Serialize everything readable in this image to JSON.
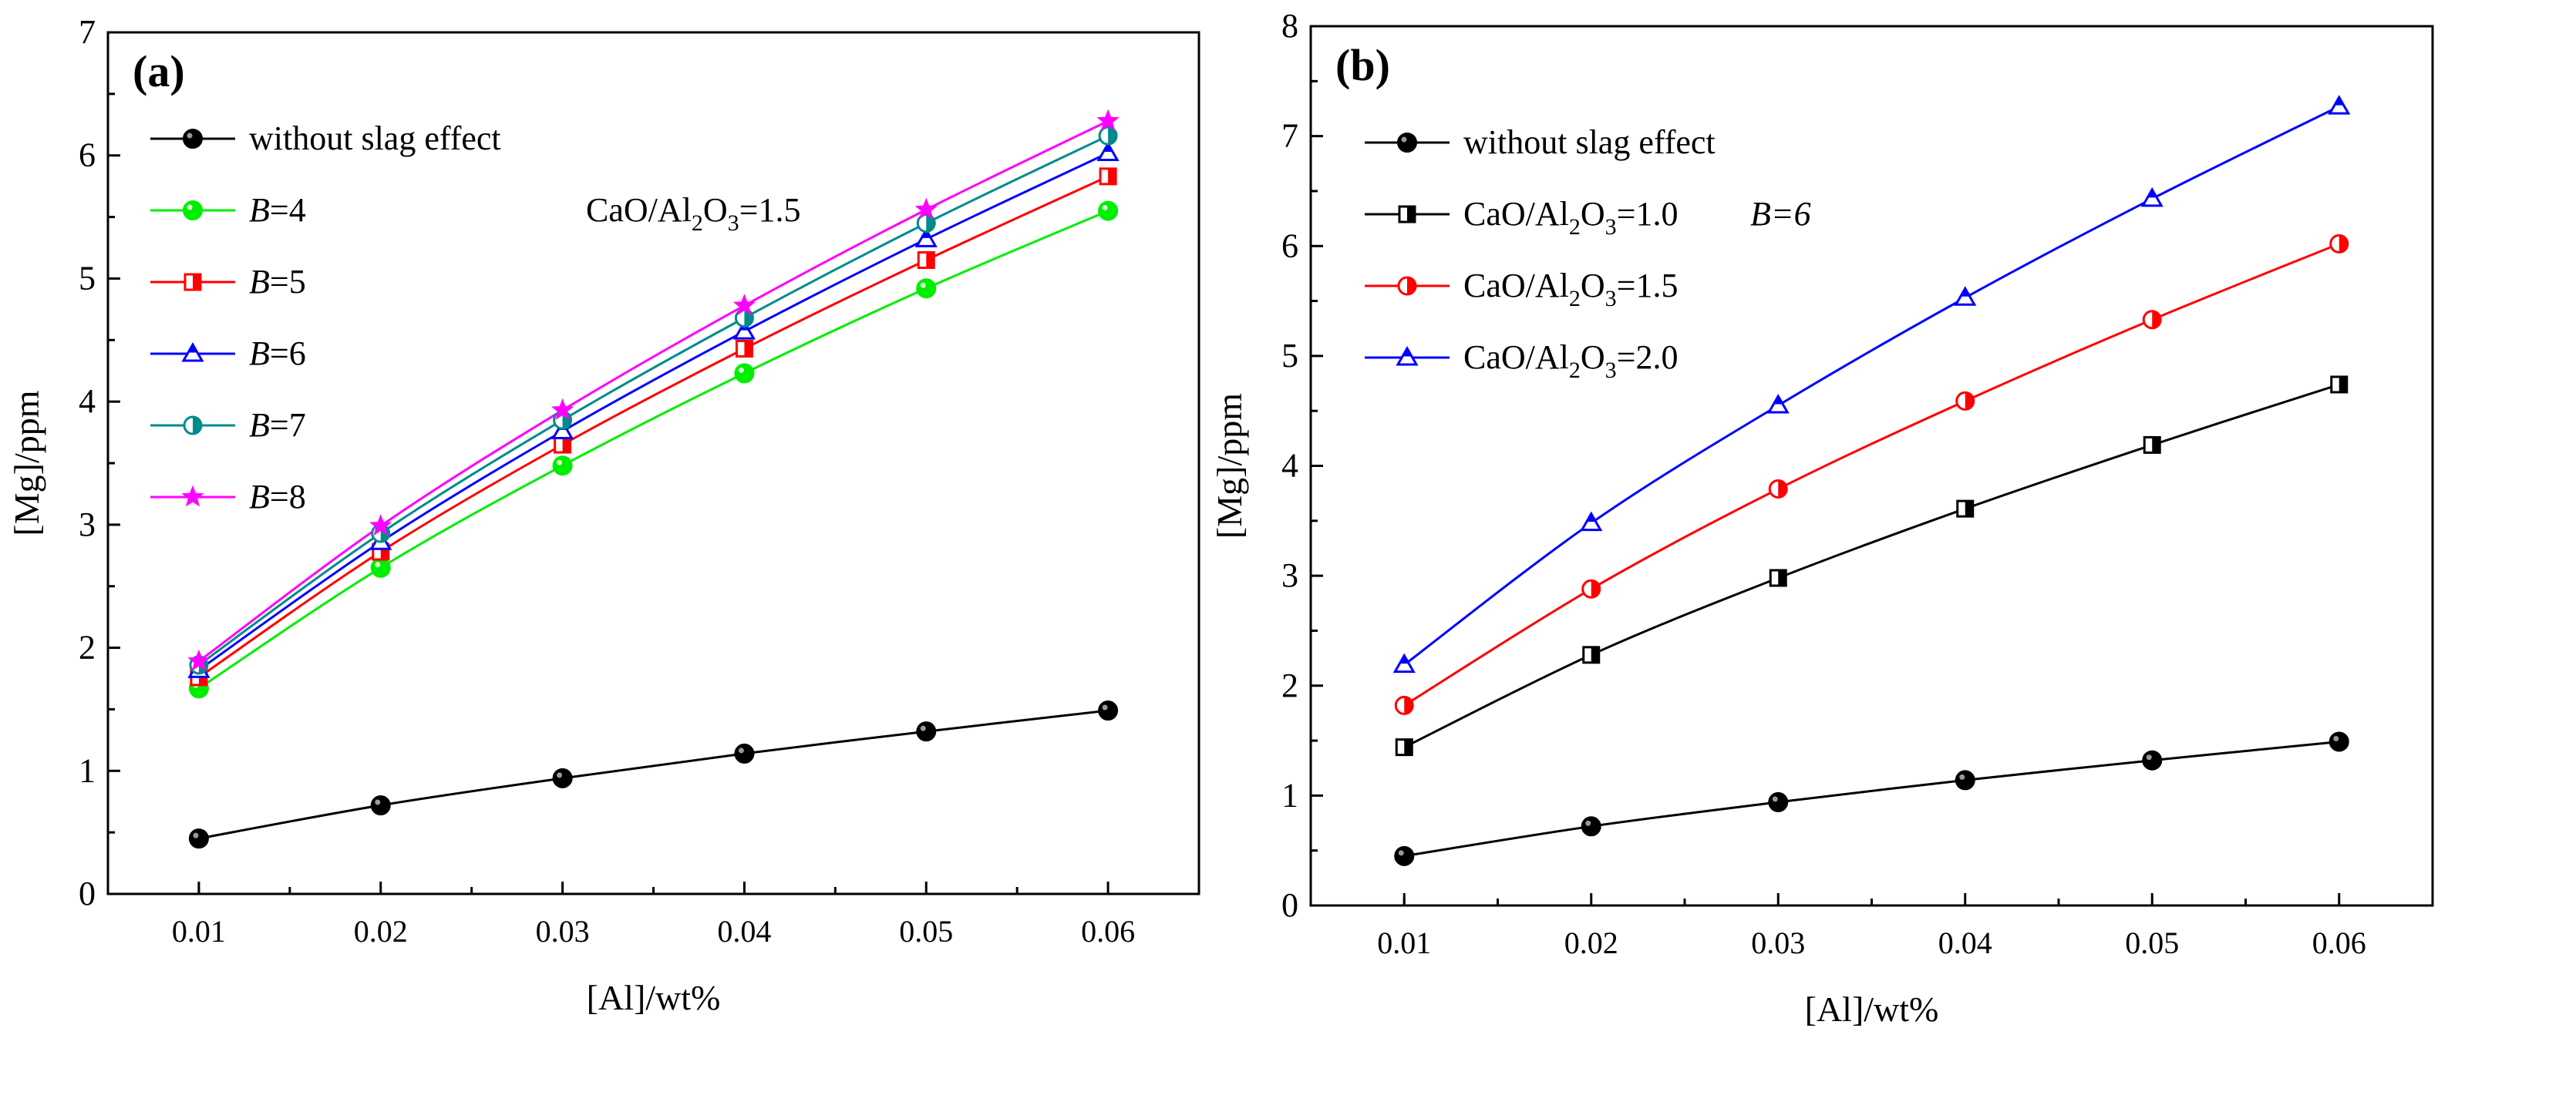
{
  "chart_data": [
    {
      "type": "line",
      "panel_label": "(a)",
      "xlabel": "[Al]/wt%",
      "ylabel": "[Mg]/ppm",
      "xlim": [
        0.005,
        0.065
      ],
      "ylim": [
        0,
        7
      ],
      "x": [
        0.01,
        0.02,
        0.03,
        0.04,
        0.05,
        0.06
      ],
      "xtick_values": [
        0.01,
        0.02,
        0.03,
        0.04,
        0.05,
        0.06
      ],
      "xtick_labels": [
        "0.01",
        "0.02",
        "0.03",
        "0.04",
        "0.05",
        "0.06"
      ],
      "ytick_values": [
        0,
        1,
        2,
        3,
        4,
        5,
        6,
        7
      ],
      "ytick_labels": [
        "0",
        "1",
        "2",
        "3",
        "4",
        "5",
        "6",
        "7"
      ],
      "legend_position": "top-left",
      "legend_note": "CaO/Al2O3=1.5",
      "series": [
        {
          "name": "without slag effect",
          "prefix": "",
          "value_text": "",
          "color": "#000000",
          "marker": "circle-filled",
          "values": [
            0.45,
            0.72,
            0.94,
            1.14,
            1.32,
            1.49
          ]
        },
        {
          "name": "B=4",
          "prefix": "B",
          "value_text": "=4",
          "color": "#00ee00",
          "marker": "circle-filled",
          "values": [
            1.67,
            2.65,
            3.48,
            4.23,
            4.92,
            5.55
          ]
        },
        {
          "name": "B=5",
          "prefix": "B",
          "value_text": "=5",
          "color": "#ff0000",
          "marker": "square-half",
          "values": [
            1.76,
            2.78,
            3.65,
            4.43,
            5.15,
            5.83
          ]
        },
        {
          "name": "B=6",
          "prefix": "B",
          "value_text": "=6",
          "color": "#0000ff",
          "marker": "triangle-half",
          "values": [
            1.82,
            2.86,
            3.76,
            4.57,
            5.32,
            6.02
          ]
        },
        {
          "name": "B=7",
          "prefix": "B",
          "value_text": "=7",
          "color": "#008b8b",
          "marker": "circle-half",
          "values": [
            1.86,
            2.93,
            3.85,
            4.68,
            5.45,
            6.16
          ]
        },
        {
          "name": "B=8",
          "prefix": "B",
          "value_text": "=8",
          "color": "#ff00ff",
          "marker": "star",
          "values": [
            1.89,
            2.99,
            3.93,
            4.78,
            5.56,
            6.28
          ]
        }
      ]
    },
    {
      "type": "line",
      "panel_label": "(b)",
      "xlabel": "[Al]/wt%",
      "ylabel": "[Mg]/ppm",
      "xlim": [
        0.005,
        0.065
      ],
      "ylim": [
        0,
        8
      ],
      "x": [
        0.01,
        0.02,
        0.03,
        0.04,
        0.05,
        0.06
      ],
      "xtick_values": [
        0.01,
        0.02,
        0.03,
        0.04,
        0.05,
        0.06
      ],
      "xtick_labels": [
        "0.01",
        "0.02",
        "0.03",
        "0.04",
        "0.05",
        "0.06"
      ],
      "ytick_values": [
        0,
        1,
        2,
        3,
        4,
        5,
        6,
        7,
        8
      ],
      "ytick_labels": [
        "0",
        "1",
        "2",
        "3",
        "4",
        "5",
        "6",
        "7",
        "8"
      ],
      "legend_position": "top-left",
      "legend_note": "B=6",
      "series": [
        {
          "name": "without slag effect",
          "prefix": "",
          "value_text": "",
          "color": "#000000",
          "marker": "circle-filled",
          "values": [
            0.45,
            0.72,
            0.94,
            1.14,
            1.32,
            1.49
          ]
        },
        {
          "name": "CaO/Al2O3=1.0",
          "prefix": "CaO/Al",
          "value_text": "O3=1.0",
          "color": "#000000",
          "marker": "square-half",
          "values": [
            1.44,
            2.28,
            2.98,
            3.61,
            4.19,
            4.74
          ]
        },
        {
          "name": "CaO/Al2O3=1.5",
          "prefix": "CaO/Al",
          "value_text": "O3=1.5",
          "color": "#ff0000",
          "marker": "circle-half",
          "values": [
            1.82,
            2.88,
            3.79,
            4.59,
            5.33,
            6.02
          ]
        },
        {
          "name": "CaO/Al2O3=2.0",
          "prefix": "CaO/Al",
          "value_text": "O3=2.0",
          "color": "#0000ff",
          "marker": "triangle-half",
          "values": [
            2.19,
            3.48,
            4.55,
            5.53,
            6.43,
            7.27
          ]
        }
      ]
    }
  ]
}
